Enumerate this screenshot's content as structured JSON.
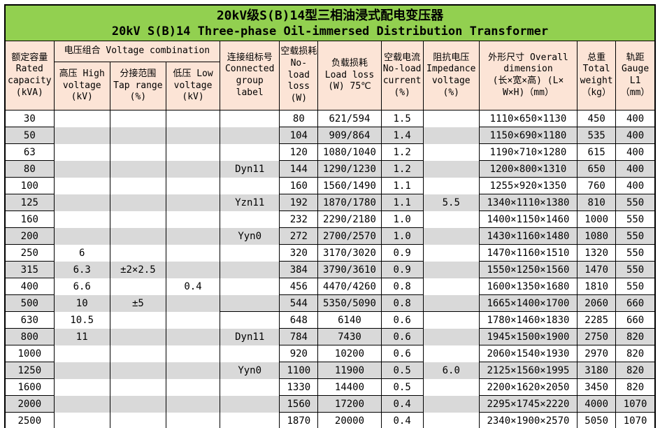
{
  "colors": {
    "title_bg": "#92D050",
    "header_bg": "#FCE4D6",
    "stripe_bg": "#D9D9D9",
    "border": "#000000"
  },
  "title": {
    "zh": "20kV级S(B)14型三相油浸式配电变压器",
    "en": "20kV S(B)14 Three-phase Oil-immersed Distribution Transformer"
  },
  "header": {
    "rated_capacity": "额定容量\nRated\ncapacity\n(kVA)",
    "voltage_combination": "电压组合 Voltage combination",
    "high_voltage": "高压 High\nvoltage\n(kV)",
    "tap_range": "分接范围\nTap range\n(%)",
    "low_voltage": "低压 Low\nvoltage\n(kV)",
    "connected_group": "连接组标号\nConnected\ngroup\nlabel",
    "no_load_loss": "空载损耗\nNo-load\nloss\n(W)",
    "load_loss": "负载损耗\nLoad loss\n(W) 75℃",
    "no_load_current": "空载电流\nNo-load\ncurrent\n(%)",
    "impedance_voltage": "阻抗电压\nImpedance\nvoltage\n(%)",
    "overall_dimension": "外形尺寸 Overall\ndimension\n(长×宽×高) (L×\nW×H)（mm）",
    "total_weight": "总重\nTotal\nweight\n（kg）",
    "gauge": "轨距\nGauge\nL1\n（mm）"
  },
  "table": {
    "col_names": [
      "rated-capacity-cell",
      "high-voltage-cell",
      "tap-range-cell",
      "low-voltage-cell",
      "connected-group-cell",
      "no-load-loss-cell",
      "load-loss-cell",
      "no-load-current-cell",
      "impedance-voltage-cell",
      "overall-dimension-cell",
      "total-weight-cell",
      "gauge-cell"
    ],
    "rows": [
      [
        "30",
        "",
        "",
        "",
        "",
        "80",
        "621/594",
        "1.5",
        "",
        "1110×650×1130",
        "450",
        "400"
      ],
      [
        "50",
        "",
        "",
        "",
        "",
        "104",
        "909/864",
        "1.4",
        "",
        "1150×690×1180",
        "535",
        "400"
      ],
      [
        "63",
        "",
        "",
        "",
        "",
        "120",
        "1080/1040",
        "1.2",
        "",
        "1190×710×1280",
        "615",
        "400"
      ],
      [
        "80",
        "",
        "",
        "",
        "Dyn11",
        "144",
        "1290/1230",
        "1.2",
        "",
        "1200×800×1310",
        "650",
        "400"
      ],
      [
        "100",
        "",
        "",
        "",
        "",
        "160",
        "1560/1490",
        "1.1",
        "",
        "1255×920×1350",
        "760",
        "400"
      ],
      [
        "125",
        "",
        "",
        "",
        "Yzn11",
        "192",
        "1870/1780",
        "1.1",
        "5.5",
        "1340×1110×1380",
        "810",
        "550"
      ],
      [
        "160",
        "",
        "",
        "",
        "",
        "232",
        "2290/2180",
        "1.0",
        "",
        "1400×1150×1460",
        "1000",
        "550"
      ],
      [
        "200",
        "",
        "",
        "",
        "Yyn0",
        "272",
        "2700/2570",
        "1.0",
        "",
        "1430×1160×1480",
        "1080",
        "550"
      ],
      [
        "250",
        "6",
        "",
        "",
        "",
        "320",
        "3170/3020",
        "0.9",
        "",
        "1470×1160×1510",
        "1320",
        "550"
      ],
      [
        "315",
        "6.3",
        "±2×2.5",
        "",
        "",
        "384",
        "3790/3610",
        "0.9",
        "",
        "1550×1250×1560",
        "1470",
        "550"
      ],
      [
        "400",
        "6.6",
        "",
        "0.4",
        "",
        "456",
        "4470/4260",
        "0.8",
        "",
        "1600×1350×1680",
        "1810",
        "550"
      ],
      [
        "500",
        "10",
        "±5",
        "",
        "",
        "544",
        "5350/5090",
        "0.8",
        "",
        "1665×1400×1700",
        "2060",
        "660"
      ],
      [
        "630",
        "10.5",
        "",
        "",
        "",
        "648",
        "6140",
        "0.6",
        "",
        "1780×1460×1830",
        "2285",
        "660"
      ],
      [
        "800",
        "11",
        "",
        "",
        "Dyn11",
        "784",
        "7430",
        "0.6",
        "",
        "1945×1500×1900",
        "2750",
        "820"
      ],
      [
        "1000",
        "",
        "",
        "",
        "",
        "920",
        "10200",
        "0.6",
        "",
        "2060×1540×1930",
        "2970",
        "820"
      ],
      [
        "1250",
        "",
        "",
        "",
        "Yyn0",
        "1100",
        "11900",
        "0.5",
        "6.0",
        "2125×1560×1995",
        "3180",
        "820"
      ],
      [
        "1600",
        "",
        "",
        "",
        "",
        "1330",
        "14400",
        "0.5",
        "",
        "2200×1620×2050",
        "3450",
        "820"
      ],
      [
        "2000",
        "",
        "",
        "",
        "",
        "1560",
        "17200",
        "0.4",
        "",
        "2295×1745×2220",
        "4000",
        "1070"
      ],
      [
        "2500",
        "",
        "",
        "",
        "",
        "1870",
        "20000",
        "0.4",
        "",
        "2340×1900×2570",
        "5050",
        "1070"
      ]
    ],
    "divider_after_row_index": 11,
    "merged_border_columns": [
      1,
      2,
      3,
      4,
      8
    ]
  }
}
